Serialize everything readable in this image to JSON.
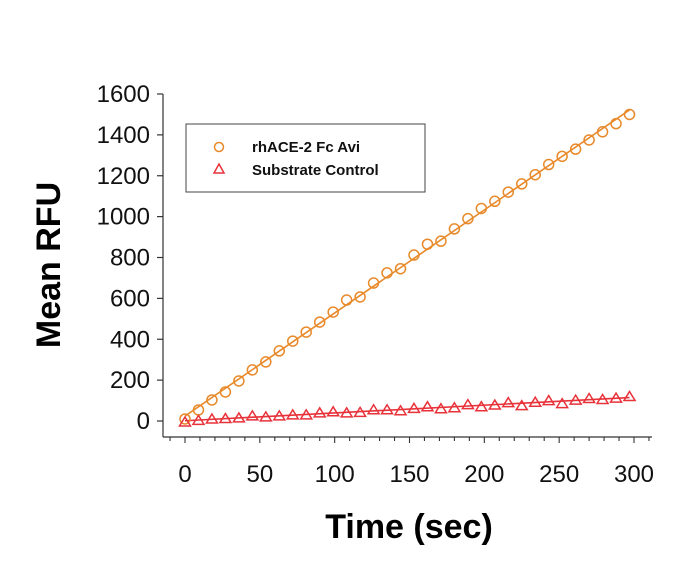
{
  "chart_data": {
    "type": "scatter",
    "title": "",
    "xlabel": "Time (sec)",
    "ylabel": "Mean RFU",
    "xlim": [
      -15,
      312
    ],
    "ylim": [
      -60,
      1600
    ],
    "xticks": [
      0,
      50,
      100,
      150,
      200,
      250,
      300
    ],
    "xtick_labels": [
      "0",
      "50",
      "100",
      "150",
      "200",
      "250",
      "300"
    ],
    "x_minor_tick_step": 10,
    "yticks": [
      0,
      200,
      400,
      600,
      800,
      1000,
      1200,
      1400,
      1600
    ],
    "ytick_labels": [
      "0",
      "200",
      "400",
      "600",
      "800",
      "1000",
      "1200",
      "1400",
      "1600"
    ],
    "grid": false,
    "legend_position": "top-left",
    "series": [
      {
        "name": "rhACE-2 Fc Avi",
        "marker": "circle",
        "color": "#E8892A",
        "fit": "linear",
        "x": [
          0,
          9,
          18,
          27,
          36,
          45,
          54,
          63,
          72,
          81,
          90,
          99,
          108,
          117,
          126,
          135,
          144,
          153,
          162,
          171,
          180,
          189,
          198,
          207,
          216,
          225,
          234,
          243,
          252,
          261,
          270,
          279,
          288,
          297
        ],
        "y": [
          10,
          54,
          103,
          142,
          196,
          250,
          289,
          343,
          391,
          435,
          484,
          533,
          592,
          607,
          675,
          725,
          745,
          812,
          865,
          880,
          940,
          990,
          1040,
          1075,
          1120,
          1160,
          1205,
          1255,
          1295,
          1330,
          1375,
          1415,
          1455,
          1500
        ]
      },
      {
        "name": "Substrate Control",
        "marker": "triangle",
        "color": "#E8323A",
        "fit": "linear",
        "x": [
          0,
          9,
          18,
          27,
          36,
          45,
          54,
          63,
          72,
          81,
          90,
          99,
          108,
          117,
          126,
          135,
          144,
          153,
          162,
          171,
          180,
          189,
          198,
          207,
          216,
          225,
          234,
          243,
          252,
          261,
          270,
          279,
          288,
          297
        ],
        "y": [
          -5,
          3,
          10,
          12,
          15,
          25,
          20,
          25,
          30,
          30,
          40,
          45,
          40,
          42,
          55,
          55,
          50,
          62,
          70,
          60,
          65,
          80,
          70,
          78,
          90,
          75,
          92,
          100,
          85,
          102,
          110,
          105,
          112,
          120
        ]
      }
    ]
  }
}
